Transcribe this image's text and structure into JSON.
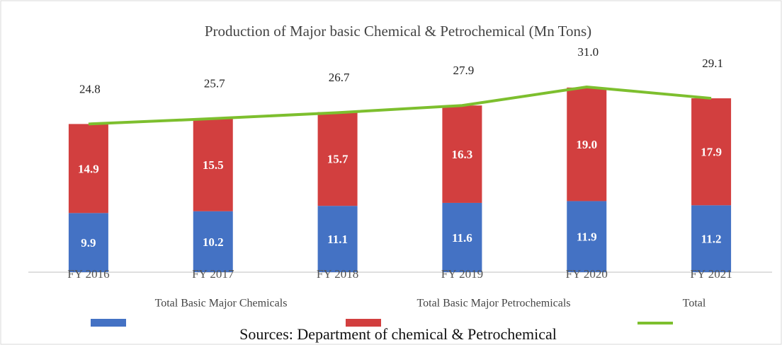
{
  "chart_data": {
    "type": "stacked_bar_line",
    "title": "Production  of Major basic Chemical & Petrochemical (Mn Tons)",
    "categories": [
      "FY 2016",
      "FY 2017",
      "FY 2018",
      "FY 2019",
      "FY 2020",
      "FY 2021"
    ],
    "series": [
      {
        "name": "Total Basic Major Chemicals",
        "color": "#4472c4",
        "kind": "bar",
        "values": [
          9.9,
          10.2,
          11.1,
          11.6,
          11.9,
          11.2
        ]
      },
      {
        "name": "Total Basic Major Petrochemicals",
        "color": "#d23f3f",
        "kind": "bar",
        "values": [
          14.9,
          15.5,
          15.7,
          16.3,
          19.0,
          17.9
        ],
        "value_labels": [
          "14.9",
          "15.5",
          "15.7",
          "16.3",
          "19.0",
          "17.9"
        ]
      },
      {
        "name": "Total",
        "color": "#7dbf2e",
        "kind": "line",
        "values": [
          24.8,
          25.7,
          26.7,
          27.9,
          31.0,
          29.1
        ],
        "value_labels": [
          "24.8",
          "25.7",
          "26.7",
          "27.9",
          "31.0",
          "29.1"
        ]
      }
    ],
    "ylim": [
      0,
      31
    ],
    "source": "Sources: Department of chemical & Petrochemical"
  }
}
